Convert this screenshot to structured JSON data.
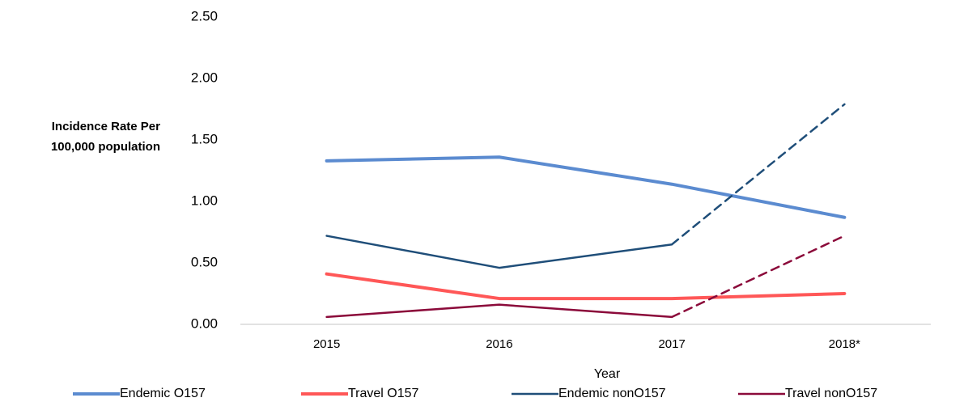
{
  "chart_data": {
    "type": "line",
    "y_label": [
      "Incidence Rate Per",
      "100,000 population"
    ],
    "x_label": "Year",
    "categories": [
      "2015",
      "2016",
      "2017",
      "2018*"
    ],
    "series": [
      {
        "name": "Endemic O157",
        "color": "#5b8bd0",
        "width": 4,
        "values": [
          1.33,
          1.36,
          1.14,
          0.87
        ]
      },
      {
        "name": "Travel O157",
        "color": "#ff5757",
        "width": 4,
        "values": [
          0.41,
          0.21,
          0.21,
          0.25
        ]
      },
      {
        "name": "Endemic nonO157",
        "color": "#1f4e79",
        "width": 2.5,
        "dash_from": "2017",
        "values": [
          0.72,
          0.46,
          0.65,
          1.79
        ]
      },
      {
        "name": "Travel nonO157",
        "color": "#8b0a3a",
        "width": 2.5,
        "dash_from": "2017",
        "values": [
          0.06,
          0.16,
          0.06,
          0.72
        ]
      }
    ],
    "ylim": [
      0,
      2.5
    ],
    "yticks": [
      {
        "value": 0,
        "label": "0.00"
      },
      {
        "value": 0.5,
        "label": "0.50"
      },
      {
        "value": 1,
        "label": "1.00"
      },
      {
        "value": 1.5,
        "label": "1.50"
      },
      {
        "value": 2,
        "label": "2.00"
      },
      {
        "value": 2.5,
        "label": "2.50"
      }
    ],
    "grid": false,
    "legend": "bottom"
  }
}
